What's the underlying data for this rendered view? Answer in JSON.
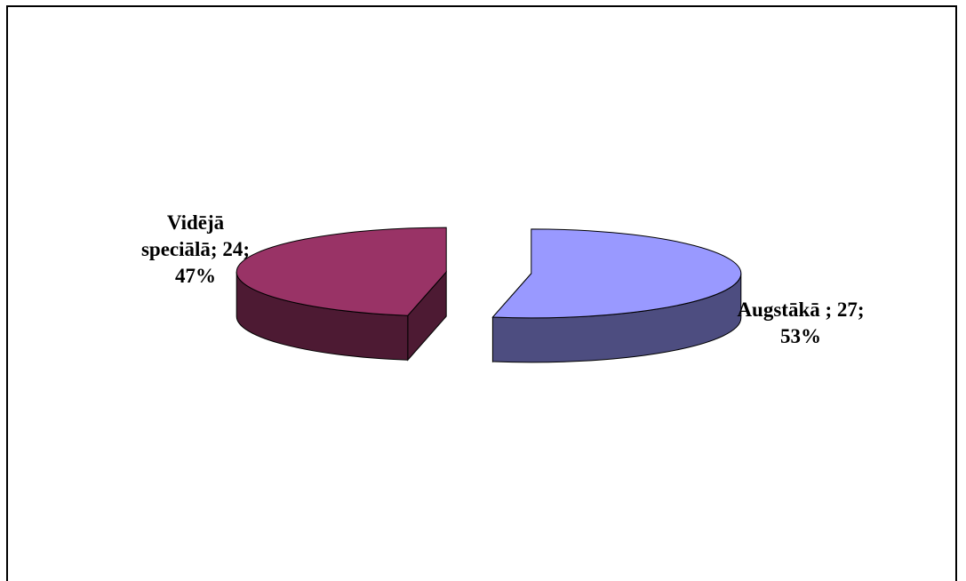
{
  "chart_data": {
    "type": "pie",
    "style": "3d-exploded",
    "title": "",
    "categories": [
      "Vidējā speciālā",
      "Augstākā"
    ],
    "values": [
      24,
      27
    ],
    "percentages": [
      47,
      53
    ],
    "colors": {
      "top": [
        "#993366",
        "#9999FF"
      ],
      "side": [
        "#4D1A33",
        "#4D4D80"
      ]
    },
    "labels": [
      {
        "line1": "Vidējā",
        "line2": "speciālā; 24;",
        "line3": "47%"
      },
      {
        "line1": "Augstākā ; 27;",
        "line2": "53%"
      }
    ],
    "legend": "none"
  }
}
